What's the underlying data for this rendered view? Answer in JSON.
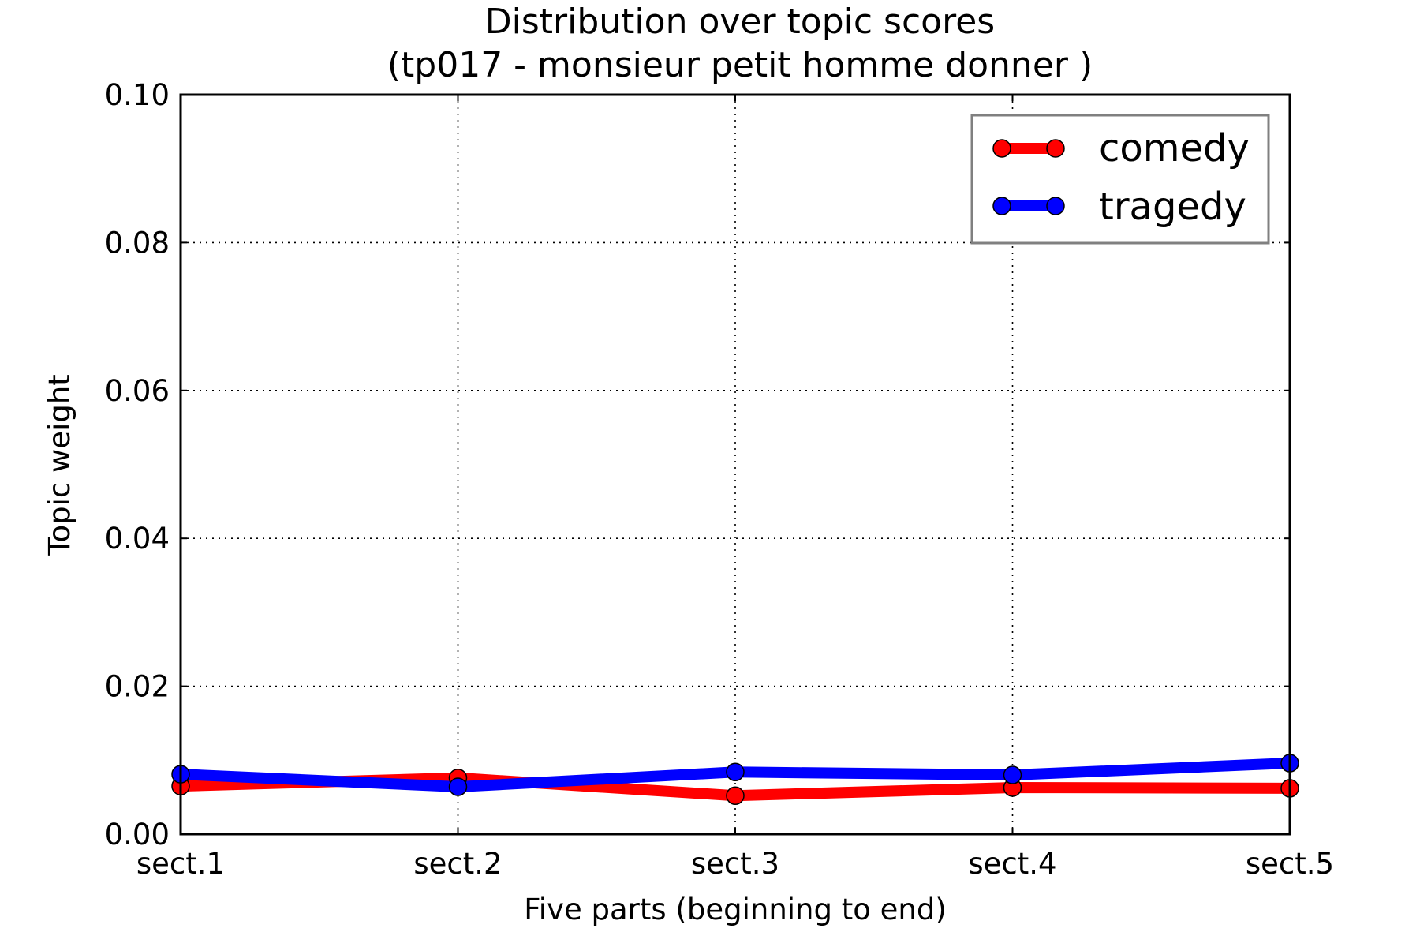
{
  "chart_data": {
    "type": "line",
    "title": "Distribution over topic scores",
    "subtitle": "(tp017 - monsieur petit homme donner )",
    "xlabel": "Five parts (beginning to end)",
    "ylabel": "Topic weight",
    "categories": [
      "sect.1",
      "sect.2",
      "sect.3",
      "sect.4",
      "sect.5"
    ],
    "ylim": [
      0,
      0.1
    ],
    "yticks": [
      "0.00",
      "0.02",
      "0.04",
      "0.06",
      "0.08",
      "0.10"
    ],
    "grid": true,
    "legend_position": "top-right",
    "series": [
      {
        "name": "comedy",
        "color": "#ff0000",
        "values": [
          0.0065,
          0.0076,
          0.0052,
          0.0063,
          0.0062
        ]
      },
      {
        "name": "tragedy",
        "color": "#0000ff",
        "values": [
          0.0081,
          0.0064,
          0.0084,
          0.008,
          0.0096
        ]
      }
    ]
  }
}
